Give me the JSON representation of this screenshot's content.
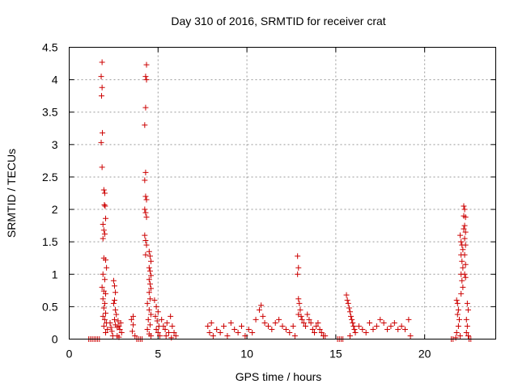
{
  "chart_data": {
    "type": "scatter",
    "title": "Day 310 of 2016, SRMTID for receiver crat",
    "xlabel": "GPS time / hours",
    "ylabel": "SRMTID / TECUs",
    "xlim": [
      0,
      24
    ],
    "ylim": [
      0,
      4.5
    ],
    "xticks": [
      0,
      5,
      10,
      15,
      20
    ],
    "xtick_labels": [
      "0",
      "5",
      "10",
      "15",
      "20"
    ],
    "yticks": [
      0,
      0.5,
      1,
      1.5,
      2,
      2.5,
      3,
      3.5,
      4,
      4.5
    ],
    "ytick_labels": [
      "0",
      "0.5",
      "1",
      "1.5",
      "2",
      "2.5",
      "3",
      "3.5",
      "4",
      "4.5"
    ],
    "grid": true,
    "marker": "plus",
    "color": "#cc0000",
    "series": [
      {
        "name": "SRMTID",
        "points": [
          [
            1.1,
            0
          ],
          [
            1.2,
            0
          ],
          [
            1.3,
            0
          ],
          [
            1.4,
            0
          ],
          [
            1.5,
            0
          ],
          [
            1.6,
            0
          ],
          [
            1.7,
            0
          ],
          [
            1.85,
            4.27
          ],
          [
            1.8,
            4.05
          ],
          [
            1.85,
            3.88
          ],
          [
            1.82,
            3.75
          ],
          [
            1.87,
            3.18
          ],
          [
            1.8,
            3.03
          ],
          [
            1.85,
            2.65
          ],
          [
            1.95,
            2.3
          ],
          [
            2.0,
            2.25
          ],
          [
            1.98,
            2.07
          ],
          [
            2.02,
            2.05
          ],
          [
            2.05,
            1.86
          ],
          [
            1.9,
            1.77
          ],
          [
            1.95,
            1.68
          ],
          [
            2.0,
            1.62
          ],
          [
            1.9,
            1.55
          ],
          [
            1.95,
            1.25
          ],
          [
            2.05,
            1.22
          ],
          [
            2.1,
            1.1
          ],
          [
            1.9,
            1.0
          ],
          [
            2.0,
            0.92
          ],
          [
            1.85,
            0.8
          ],
          [
            1.95,
            0.74
          ],
          [
            2.05,
            0.7
          ],
          [
            1.9,
            0.62
          ],
          [
            2.0,
            0.55
          ],
          [
            1.95,
            0.48
          ],
          [
            2.05,
            0.4
          ],
          [
            1.9,
            0.35
          ],
          [
            2.0,
            0.3
          ],
          [
            2.1,
            0.25
          ],
          [
            1.95,
            0.2
          ],
          [
            2.15,
            0.15
          ],
          [
            2.05,
            0.1
          ],
          [
            2.3,
            0.25
          ],
          [
            2.35,
            0.18
          ],
          [
            2.4,
            0.12
          ],
          [
            2.45,
            0.05
          ],
          [
            2.5,
            0.9
          ],
          [
            2.55,
            0.82
          ],
          [
            2.6,
            0.72
          ],
          [
            2.55,
            0.6
          ],
          [
            2.5,
            0.55
          ],
          [
            2.6,
            0.45
          ],
          [
            2.65,
            0.38
          ],
          [
            2.55,
            0.3
          ],
          [
            2.6,
            0.22
          ],
          [
            2.7,
            0.18
          ],
          [
            2.75,
            0.28
          ],
          [
            2.8,
            0.2
          ],
          [
            2.85,
            0.15
          ],
          [
            2.9,
            0.25
          ],
          [
            2.95,
            0.1
          ],
          [
            2.7,
            0.05
          ],
          [
            2.8,
            0.03
          ],
          [
            3.5,
            0.3
          ],
          [
            3.6,
            0.22
          ],
          [
            3.55,
            0.12
          ],
          [
            3.7,
            0.05
          ],
          [
            3.6,
            0.35
          ],
          [
            3.8,
            0.0
          ],
          [
            3.9,
            0.0
          ],
          [
            4.0,
            0.0
          ],
          [
            4.1,
            0.0
          ],
          [
            4.35,
            4.23
          ],
          [
            4.3,
            4.05
          ],
          [
            4.35,
            4.0
          ],
          [
            4.3,
            3.57
          ],
          [
            4.25,
            3.3
          ],
          [
            4.3,
            2.57
          ],
          [
            4.25,
            2.45
          ],
          [
            4.3,
            2.2
          ],
          [
            4.35,
            2.15
          ],
          [
            4.25,
            2.0
          ],
          [
            4.3,
            1.95
          ],
          [
            4.35,
            1.88
          ],
          [
            4.25,
            1.6
          ],
          [
            4.3,
            1.52
          ],
          [
            4.35,
            1.45
          ],
          [
            4.3,
            1.3
          ],
          [
            4.5,
            1.35
          ],
          [
            4.55,
            1.28
          ],
          [
            4.6,
            1.2
          ],
          [
            4.5,
            1.1
          ],
          [
            4.55,
            1.05
          ],
          [
            4.6,
            0.98
          ],
          [
            4.5,
            0.92
          ],
          [
            4.55,
            0.85
          ],
          [
            4.6,
            0.78
          ],
          [
            4.5,
            0.72
          ],
          [
            4.55,
            0.62
          ],
          [
            4.4,
            0.55
          ],
          [
            4.5,
            0.45
          ],
          [
            4.6,
            0.38
          ],
          [
            4.45,
            0.3
          ],
          [
            4.55,
            0.22
          ],
          [
            4.4,
            0.15
          ],
          [
            4.5,
            0.08
          ],
          [
            4.6,
            0.05
          ],
          [
            4.8,
            0.6
          ],
          [
            4.9,
            0.5
          ],
          [
            5.0,
            0.42
          ],
          [
            4.85,
            0.35
          ],
          [
            4.95,
            0.28
          ],
          [
            5.05,
            0.2
          ],
          [
            4.9,
            0.15
          ],
          [
            5.0,
            0.1
          ],
          [
            5.1,
            0.05
          ],
          [
            5.2,
            0.3
          ],
          [
            5.3,
            0.2
          ],
          [
            5.4,
            0.15
          ],
          [
            5.5,
            0.25
          ],
          [
            5.6,
            0.1
          ],
          [
            5.7,
            0.35
          ],
          [
            5.8,
            0.2
          ],
          [
            5.9,
            0.1
          ],
          [
            6.0,
            0.05
          ],
          [
            5.45,
            0.05
          ],
          [
            5.75,
            0.02
          ],
          [
            7.8,
            0.2
          ],
          [
            7.9,
            0.1
          ],
          [
            8.0,
            0.25
          ],
          [
            8.1,
            0.05
          ],
          [
            8.3,
            0.15
          ],
          [
            8.5,
            0.1
          ],
          [
            8.7,
            0.2
          ],
          [
            8.9,
            0.05
          ],
          [
            9.1,
            0.25
          ],
          [
            9.3,
            0.15
          ],
          [
            9.5,
            0.1
          ],
          [
            9.7,
            0.2
          ],
          [
            9.9,
            0.05
          ],
          [
            10.1,
            0.15
          ],
          [
            10.3,
            0.1
          ],
          [
            10.5,
            0.3
          ],
          [
            10.7,
            0.45
          ],
          [
            10.8,
            0.52
          ],
          [
            10.9,
            0.35
          ],
          [
            11.0,
            0.25
          ],
          [
            11.2,
            0.2
          ],
          [
            11.4,
            0.15
          ],
          [
            11.6,
            0.25
          ],
          [
            11.8,
            0.3
          ],
          [
            12.0,
            0.2
          ],
          [
            12.2,
            0.15
          ],
          [
            12.4,
            0.1
          ],
          [
            12.6,
            0.2
          ],
          [
            12.7,
            0.05
          ],
          [
            12.85,
            1.28
          ],
          [
            12.9,
            1.1
          ],
          [
            12.85,
            1.0
          ],
          [
            12.9,
            0.62
          ],
          [
            12.95,
            0.55
          ],
          [
            13.0,
            0.45
          ],
          [
            12.9,
            0.38
          ],
          [
            13.05,
            0.35
          ],
          [
            13.1,
            0.3
          ],
          [
            13.2,
            0.25
          ],
          [
            13.3,
            0.2
          ],
          [
            13.4,
            0.38
          ],
          [
            13.5,
            0.3
          ],
          [
            13.6,
            0.25
          ],
          [
            13.7,
            0.15
          ],
          [
            13.8,
            0.1
          ],
          [
            13.9,
            0.2
          ],
          [
            14.0,
            0.25
          ],
          [
            14.1,
            0.15
          ],
          [
            14.2,
            0.1
          ],
          [
            14.3,
            0.05
          ],
          [
            14.4,
            0.05
          ],
          [
            15.1,
            0.0
          ],
          [
            15.2,
            0.0
          ],
          [
            15.3,
            0.0
          ],
          [
            15.4,
            0.0
          ],
          [
            15.6,
            0.68
          ],
          [
            15.65,
            0.6
          ],
          [
            15.7,
            0.55
          ],
          [
            15.75,
            0.48
          ],
          [
            15.8,
            0.42
          ],
          [
            15.85,
            0.35
          ],
          [
            15.9,
            0.3
          ],
          [
            15.95,
            0.25
          ],
          [
            16.0,
            0.2
          ],
          [
            16.05,
            0.15
          ],
          [
            16.1,
            0.1
          ],
          [
            15.8,
            0.05
          ],
          [
            16.3,
            0.2
          ],
          [
            16.5,
            0.15
          ],
          [
            16.7,
            0.1
          ],
          [
            16.9,
            0.25
          ],
          [
            17.1,
            0.15
          ],
          [
            17.3,
            0.2
          ],
          [
            17.5,
            0.3
          ],
          [
            17.7,
            0.25
          ],
          [
            17.9,
            0.15
          ],
          [
            18.1,
            0.2
          ],
          [
            18.3,
            0.25
          ],
          [
            18.5,
            0.15
          ],
          [
            18.7,
            0.2
          ],
          [
            18.9,
            0.15
          ],
          [
            19.1,
            0.3
          ],
          [
            19.2,
            0.05
          ],
          [
            21.5,
            0.0
          ],
          [
            21.6,
            0.0
          ],
          [
            21.8,
            0.6
          ],
          [
            21.85,
            0.55
          ],
          [
            21.9,
            0.45
          ],
          [
            21.85,
            0.38
          ],
          [
            21.95,
            0.3
          ],
          [
            21.9,
            0.2
          ],
          [
            21.8,
            0.1
          ],
          [
            22.0,
            0.05
          ],
          [
            21.75,
            0.02
          ],
          [
            22.0,
            1.6
          ],
          [
            22.05,
            1.5
          ],
          [
            22.1,
            1.45
          ],
          [
            22.15,
            1.38
          ],
          [
            22.05,
            1.3
          ],
          [
            22.1,
            1.2
          ],
          [
            22.15,
            1.1
          ],
          [
            22.05,
            1.0
          ],
          [
            22.1,
            0.9
          ],
          [
            22.15,
            0.8
          ],
          [
            22.05,
            0.7
          ],
          [
            22.2,
            2.05
          ],
          [
            22.25,
            2.0
          ],
          [
            22.2,
            1.9
          ],
          [
            22.3,
            1.88
          ],
          [
            22.25,
            1.75
          ],
          [
            22.2,
            1.7
          ],
          [
            22.3,
            1.65
          ],
          [
            22.25,
            1.55
          ],
          [
            22.3,
            1.45
          ],
          [
            22.25,
            1.3
          ],
          [
            22.3,
            1.15
          ],
          [
            22.25,
            1.0
          ],
          [
            22.3,
            0.95
          ],
          [
            22.4,
            0.55
          ],
          [
            22.45,
            0.45
          ],
          [
            22.35,
            0.3
          ],
          [
            22.4,
            0.2
          ],
          [
            22.35,
            0.1
          ],
          [
            22.45,
            0.05
          ],
          [
            22.5,
            0.0
          ],
          [
            22.6,
            0.0
          ]
        ]
      }
    ]
  }
}
